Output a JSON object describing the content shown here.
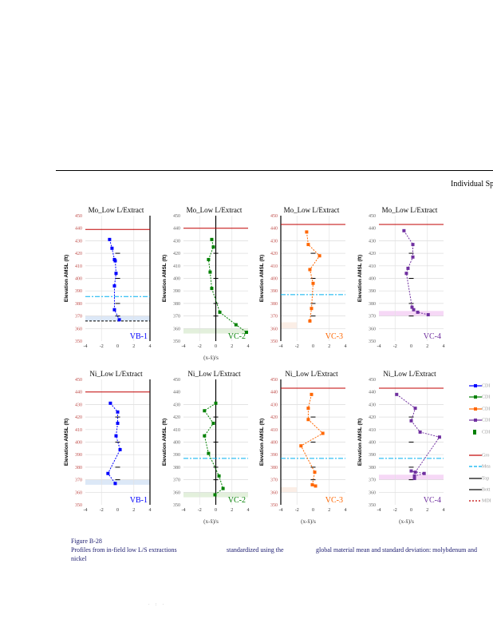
{
  "header": {
    "title": "Individual Sp"
  },
  "caption": {
    "figure": "Figure B-28",
    "line1a": "Profiles from in-field low L/S extractions",
    "line1b": "standardized using the",
    "line1c": "global material mean and standard deviation: molybdenum and",
    "line2": "nickel"
  },
  "footer": "· : ·",
  "legend": [
    {
      "label": "CDI",
      "color": "#0000ff",
      "style": "marker-line"
    },
    {
      "label": "CDI",
      "color": "#008000",
      "style": "marker-line"
    },
    {
      "label": "CDI",
      "color": "#ff6600",
      "style": "marker-line"
    },
    {
      "label": "CDI",
      "color": "#7030a0",
      "style": "marker-line"
    },
    {
      "label": "CDI",
      "color": "#008000",
      "style": "square"
    },
    {
      "label": "Gro",
      "color": "#c00000",
      "style": "solid"
    },
    {
      "label": "Mea",
      "color": "#00b0f0",
      "style": "dashdot"
    },
    {
      "label": "Top",
      "color": "#000000",
      "style": "solid"
    },
    {
      "label": "Bott",
      "color": "#000000",
      "style": "solid"
    },
    {
      "label": "MDI",
      "color": "#c00000",
      "style": "dotted"
    }
  ],
  "chart_data": [
    {
      "type": "line",
      "title": "Mo_Low L/Extract",
      "ylabel": "Elevation AMSL (ft)",
      "xlabel": "",
      "panel_label": "VB-1",
      "color": "#0000ff",
      "xlim": [
        -4,
        4
      ],
      "ylim": [
        350,
        450
      ],
      "xticks": [
        -4,
        -2,
        0,
        2,
        4
      ],
      "yticks": [
        350,
        360,
        370,
        380,
        390,
        400,
        410,
        420,
        430,
        440,
        450
      ],
      "x": [
        -1,
        -0.7,
        -0.4,
        -0.3,
        -0.2,
        -0.4,
        -0.4,
        0.2
      ],
      "y": [
        431,
        424,
        415,
        414,
        404,
        394,
        375,
        367
      ],
      "ground": 439,
      "mean": 385.5,
      "bottom": 366,
      "shade": [
        366,
        370
      ],
      "shade_color": "#dce8f7",
      "axis_x": 4
    },
    {
      "type": "line",
      "title": "Mo_Low L/Extract",
      "ylabel": "Elevation AMSL (ft)",
      "xlabel": "(x-x̄)/s",
      "panel_label": "VC-2",
      "color": "#008000",
      "xlim": [
        -4,
        4
      ],
      "ylim": [
        350,
        450
      ],
      "xticks": [
        -4,
        -2,
        0,
        2,
        4
      ],
      "yticks": [
        350,
        360,
        370,
        380,
        390,
        400,
        410,
        420,
        430,
        440,
        450
      ],
      "x": [
        -0.5,
        -0.3,
        -0.9,
        -0.7,
        -0.5,
        0.5,
        2.5,
        3.8
      ],
      "y": [
        431,
        425,
        415,
        405,
        392,
        373,
        363,
        357
      ],
      "ground": 440,
      "mean": null,
      "bottom": null,
      "shade": [
        356,
        360
      ],
      "shade_color": "#e3f0dc",
      "axis_x": 0
    },
    {
      "type": "line",
      "title": "Mo_Low L/Extract",
      "ylabel": "Elevation AMSL (ft)",
      "xlabel": "",
      "panel_label": "VC-3",
      "color": "#ff6600",
      "xlim": [
        -4,
        4
      ],
      "ylim": [
        350,
        450
      ],
      "xticks": [
        -4,
        -2,
        0,
        2,
        4
      ],
      "yticks": [
        350,
        360,
        370,
        380,
        390,
        400,
        410,
        420,
        430,
        440,
        450
      ],
      "x": [
        -0.8,
        -0.6,
        0.8,
        -0.4,
        0,
        -0.2,
        -0.4
      ],
      "y": [
        437,
        427,
        418,
        407,
        396,
        376,
        366
      ],
      "ground": 443,
      "mean": 387,
      "bottom": null,
      "shade": [
        360,
        365
      ],
      "shade_color": "#fbeee6",
      "axis_x": -4
    },
    {
      "type": "line",
      "title": "Mo_Low L/Extract",
      "ylabel": "Elevation AMSL (ft)",
      "xlabel": "",
      "panel_label": "VC-4",
      "color": "#7030a0",
      "xlim": [
        -4,
        4
      ],
      "ylim": [
        350,
        450
      ],
      "xticks": [
        -4,
        -2,
        0,
        2,
        4
      ],
      "yticks": [
        350,
        360,
        370,
        380,
        390,
        400,
        410,
        420,
        430,
        440,
        450
      ],
      "x": [
        -0.9,
        0.2,
        0.2,
        -0.4,
        -0.6,
        0.1,
        0.3,
        0.8,
        2.1
      ],
      "y": [
        438,
        427,
        417,
        408,
        404,
        377,
        375,
        373,
        371
      ],
      "ground": 443,
      "mean": null,
      "bottom": null,
      "shade": [
        370,
        374
      ],
      "shade_color": "#f6d8f6",
      "axis_x": null
    },
    {
      "type": "line",
      "title": "Ni_Low L/Extract",
      "ylabel": "Elevation AMSL (ft)",
      "xlabel": "",
      "panel_label": "VB-1",
      "color": "#0000ff",
      "xlim": [
        -4,
        4
      ],
      "ylim": [
        350,
        450
      ],
      "xticks": [
        -4,
        -2,
        0,
        2,
        4
      ],
      "yticks": [
        350,
        360,
        370,
        380,
        390,
        400,
        410,
        420,
        430,
        440,
        450
      ],
      "x": [
        -0.9,
        0,
        0,
        -0.2,
        0.3,
        -1.2,
        -0.3
      ],
      "y": [
        431,
        424,
        415,
        405,
        394,
        375,
        367
      ],
      "ground": 440,
      "mean": null,
      "bottom": null,
      "shade": [
        366,
        370
      ],
      "shade_color": "#dce8f7",
      "axis_x": 4
    },
    {
      "type": "line",
      "title": "Ni_Low L/Extract",
      "ylabel": "Elevation AMSL (ft)",
      "xlabel": "(x-x̄)/s",
      "panel_label": "VC-2",
      "color": "#008000",
      "xlim": [
        -4,
        4
      ],
      "ylim": [
        350,
        450
      ],
      "xticks": [
        -4,
        -2,
        0,
        2,
        4
      ],
      "yticks": [
        350,
        360,
        370,
        380,
        390,
        400,
        410,
        420,
        430,
        440,
        450
      ],
      "x": [
        0,
        -1.4,
        -0.3,
        -1.4,
        -0.9,
        0.4,
        0.9,
        -0.1
      ],
      "y": [
        431,
        425,
        415,
        405,
        391,
        373,
        363,
        358
      ],
      "ground": null,
      "mean": 387,
      "bottom": null,
      "shade": [
        356,
        360
      ],
      "shade_color": "#e3f0dc",
      "axis_x": 0
    },
    {
      "type": "line",
      "title": "Ni_Low L/Extract",
      "ylabel": "Elevation AMSL (ft)",
      "xlabel": "(x-x̄)/s",
      "panel_label": "VC-3",
      "color": "#ff6600",
      "xlim": [
        -4,
        4
      ],
      "ylim": [
        350,
        450
      ],
      "xticks": [
        -4,
        -2,
        0,
        2,
        4
      ],
      "yticks": [
        350,
        360,
        370,
        380,
        390,
        400,
        410,
        420,
        430,
        440,
        450
      ],
      "x": [
        -0.2,
        -0.6,
        -0.6,
        1.2,
        -1.5,
        0.2,
        -0.1,
        0.3
      ],
      "y": [
        438,
        427,
        418,
        407,
        397,
        376,
        366,
        365
      ],
      "ground": 443,
      "mean": 387,
      "bottom": null,
      "shade": [
        360,
        364
      ],
      "shade_color": "#fbeee6",
      "axis_x": -4
    },
    {
      "type": "line",
      "title": "Ni_Low L/Extract",
      "ylabel": "Elevation AMSL (ft)",
      "xlabel": "(x-x̄)/s",
      "panel_label": "VC-4",
      "color": "#7030a0",
      "xlim": [
        -4,
        4
      ],
      "ylim": [
        350,
        450
      ],
      "xticks": [
        -4,
        -2,
        0,
        2,
        4
      ],
      "yticks": [
        350,
        360,
        370,
        380,
        390,
        400,
        410,
        420,
        430,
        440,
        450
      ],
      "x": [
        -1.8,
        0.5,
        0,
        1.1,
        3.5,
        0.5,
        0,
        1.6,
        0.4,
        0.4
      ],
      "y": [
        438,
        427,
        417,
        408,
        404,
        376,
        377,
        375,
        373,
        371
      ],
      "ground": 443,
      "mean": 387,
      "bottom": null,
      "shade": [
        370,
        374
      ],
      "shade_color": "#f6d8f6",
      "axis_x": null
    }
  ]
}
